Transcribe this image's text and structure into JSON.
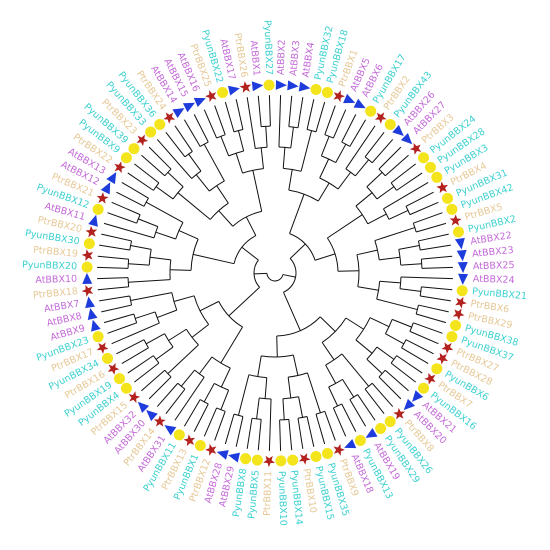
{
  "tree": {
    "leaves": [
      "AtBBX2",
      "AtBBX3",
      "AtBBX4",
      "PyunBBX32",
      "PyunBBX18",
      "PtrBBX1",
      "AtBBX5",
      "AtBBX6",
      "PyunBBX17",
      "PtrBBX2",
      "PyunBBX43",
      "AtBBX26",
      "AtBBX27",
      "PtrBBX3",
      "PyunBBX24",
      "PyunBBX28",
      "PyunBBX3",
      "PtrBBX4",
      "PyunBBX31",
      "PyunBBX42",
      "PtrBBX5",
      "PyunBBX2",
      "AtBBX22",
      "AtBBX23",
      "AtBBX25",
      "AtBBX24",
      "PyunBBX21",
      "PtrBBX6",
      "PtrBBX29",
      "PyunBBX38",
      "PyunBBX37",
      "PtrBBX27",
      "PtrBBX28",
      "PyunBBX6",
      "PtrBBX7",
      "PyunBBX16",
      "AtBBX21",
      "AtBBX20",
      "PtrBBX8",
      "PyunBBX26",
      "PyunBBX29",
      "AtBBX19",
      "PyunBBX13",
      "AtBBX18",
      "PtrBBX9",
      "PyunBBX35",
      "PyunBBX15",
      "PtrBBX10",
      "PyunBBX14",
      "PyunBBX10",
      "PtrBBX11",
      "PyunBBX5",
      "PyunBBX8",
      "AtBBX29",
      "AtBBX28",
      "PtrBBX12",
      "PyunBBX1",
      "PtrBBX13",
      "PyunBBX11",
      "AtBBX31",
      "PtrBBX14",
      "AtBBX30",
      "AtBBX32",
      "PtrBBX15",
      "PyunBBX4",
      "PyunBBX19",
      "PtrBBX16",
      "PyunBBX34",
      "PtrBBX17",
      "PyunBBX23",
      "AtBBX9",
      "AtBBX8",
      "AtBBX7",
      "PtrBBX18",
      "AtBBX10",
      "PyunBBX20",
      "PtrBBX19",
      "PyunBBX30",
      "PtrBBX20",
      "AtBBX11",
      "PyunBBX12",
      "PtrBBX21",
      "AtBBX12",
      "AtBBX13",
      "PtrBBX22",
      "PyunBBX9",
      "PyunBBX39",
      "PtrBBX23",
      "PyunBBX33",
      "PyunBBX36",
      "PtrBBX24",
      "AtBBX14",
      "AtBBX15",
      "AtBBX16",
      "PtrBBX25",
      "PyunBBX22",
      "AtBBX17",
      "PtrBBX26",
      "AtBBX1",
      "PyunBBX27"
    ],
    "styles": [
      {
        "prefix": "AtBBX",
        "label_color": "#c46ad8",
        "marker": "triangle",
        "marker_color": "#1e3cdc"
      },
      {
        "prefix": "PyunBBX",
        "label_color": "#3cd0d0",
        "marker": "circle",
        "marker_color": "#f4e41c"
      },
      {
        "prefix": "PtrBBX",
        "label_color": "#e6c896",
        "marker": "star",
        "marker_color": "#b3221e"
      }
    ]
  }
}
